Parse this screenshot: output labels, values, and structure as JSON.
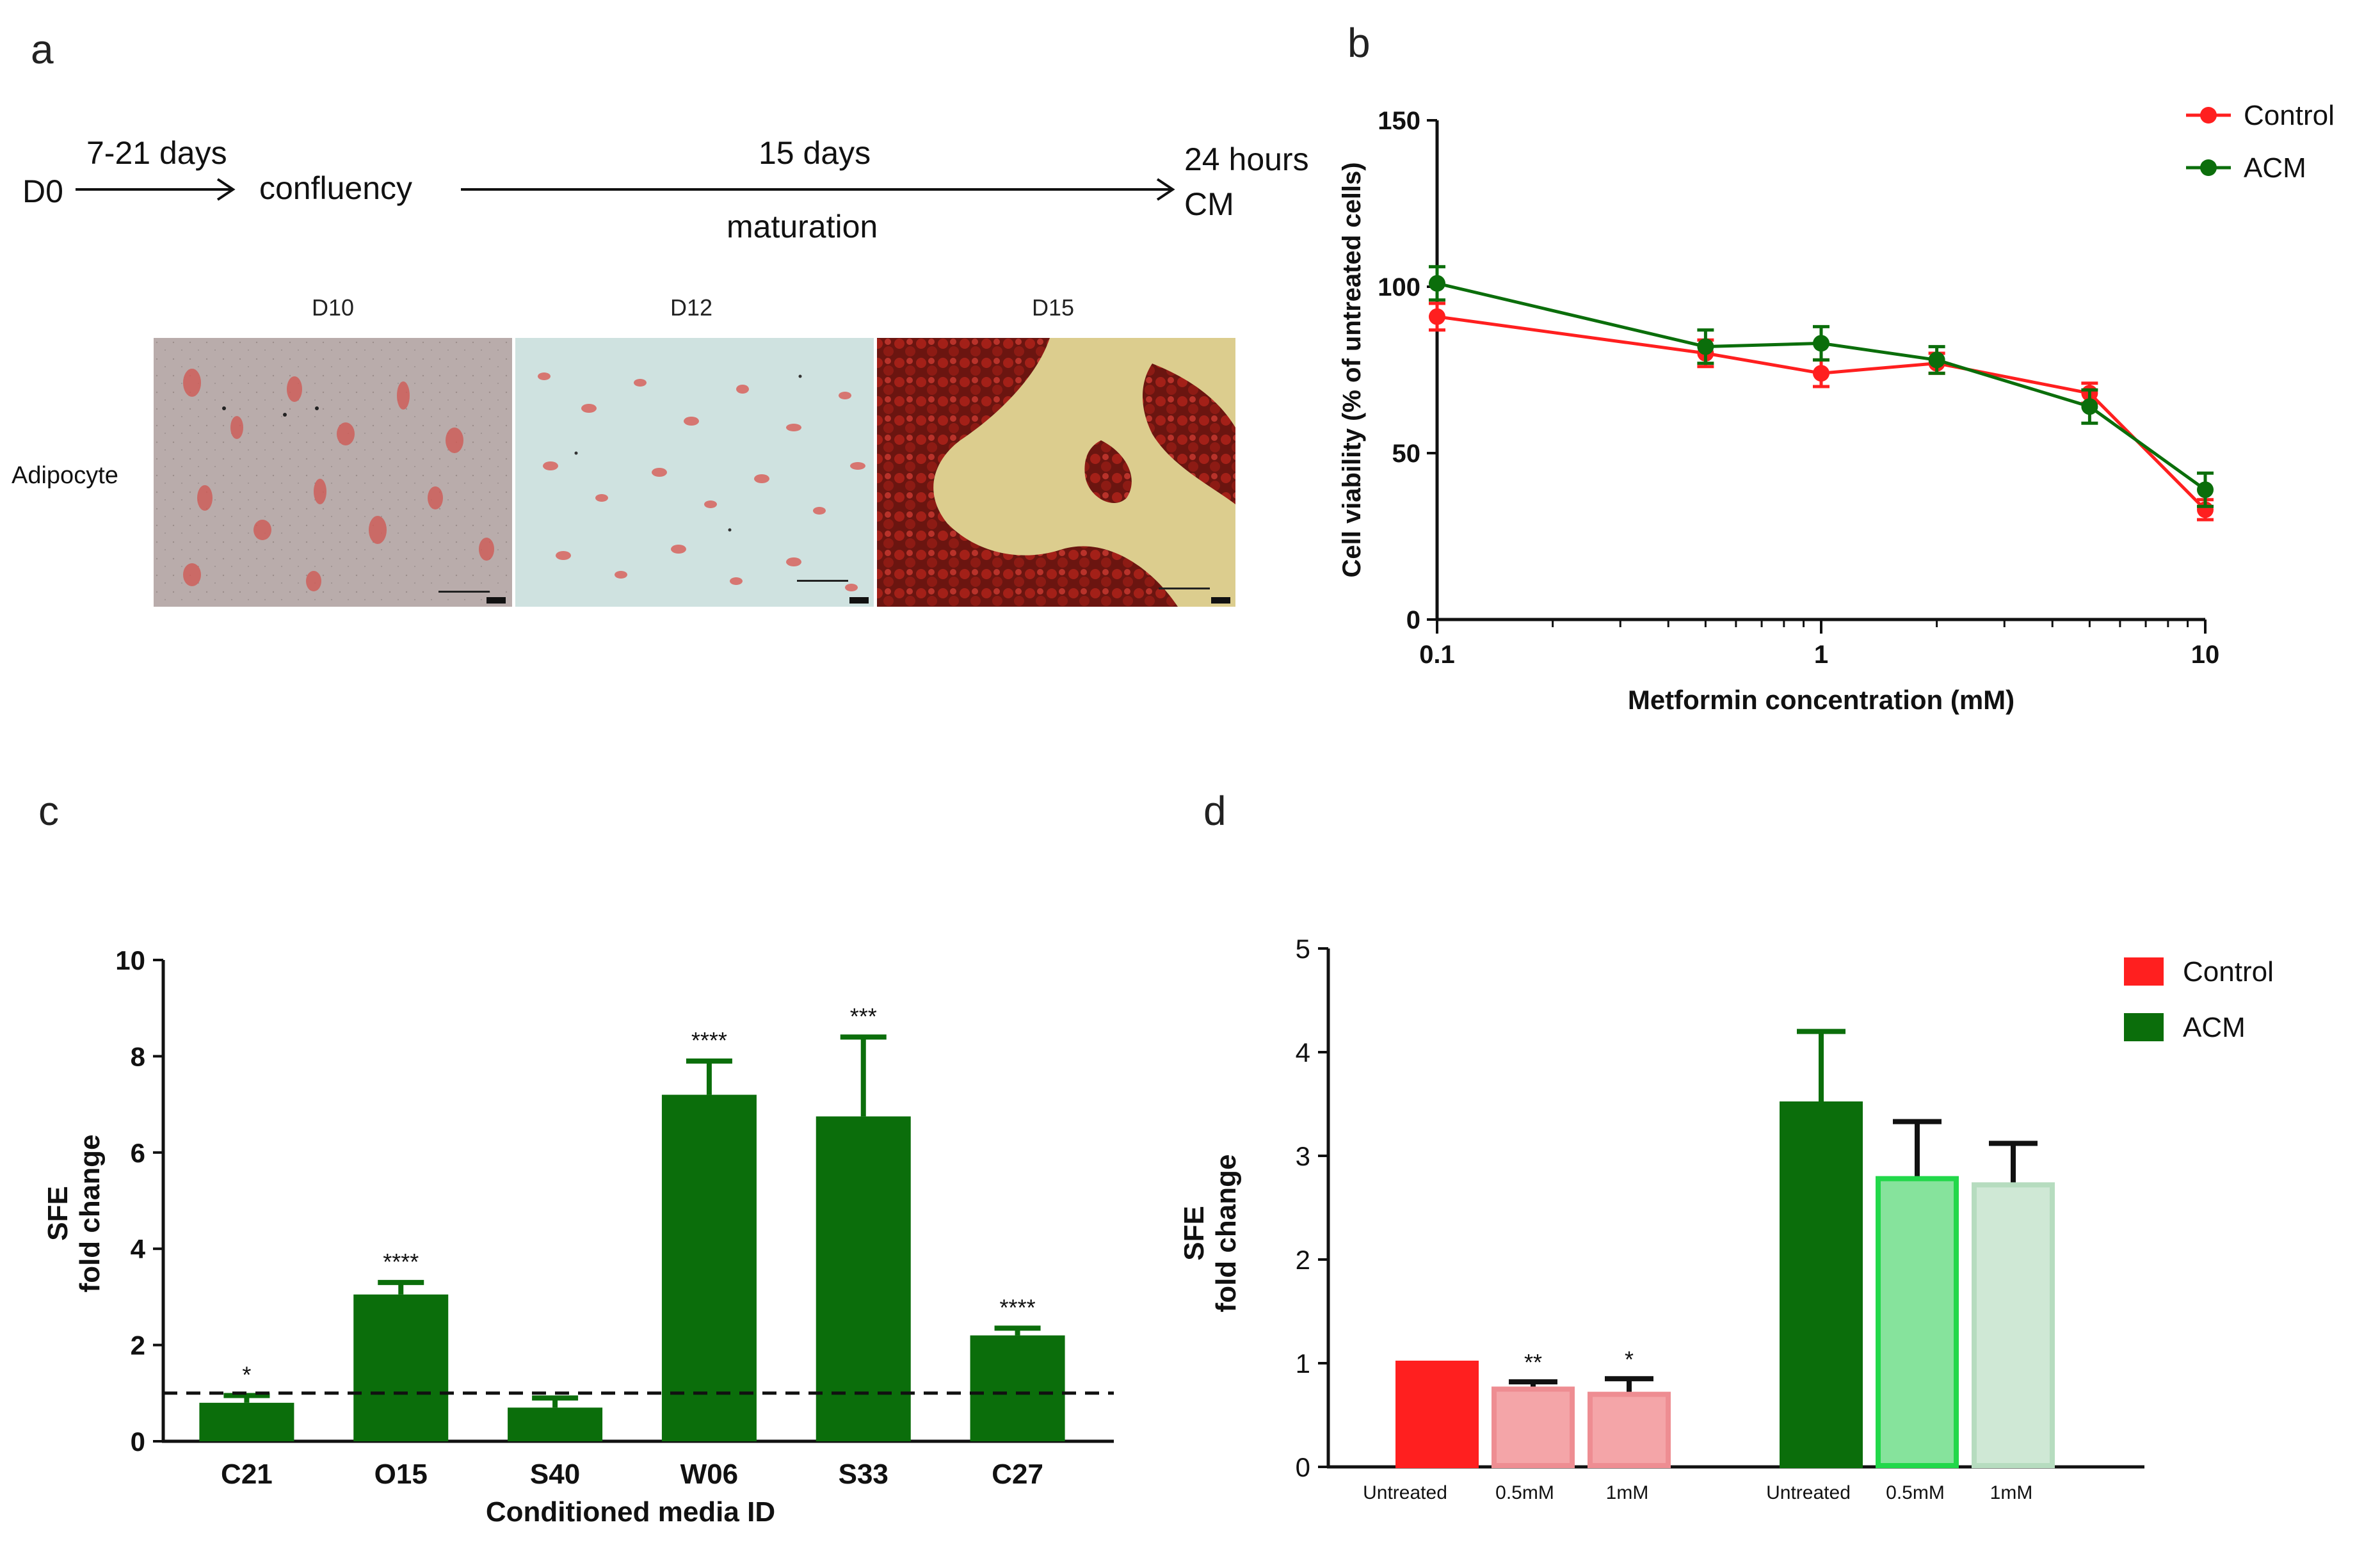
{
  "panels": {
    "a": "a",
    "b": "b",
    "c": "c",
    "d": "d"
  },
  "timeline": {
    "start": "D0",
    "step1_duration": "7-21 days",
    "step1_label": "confluency",
    "step2_duration": "15 days",
    "step2_label": "maturation",
    "end_line1": "24 hours",
    "end_line2": "CM"
  },
  "micrographs": {
    "row_label": "Adipocyte",
    "labels": [
      "D10",
      "D12",
      "D15"
    ],
    "colors": {
      "d10_bg": "#b7aaa8",
      "d12_bg": "#c9e0de",
      "d15_bg": "#d9c98a",
      "stain": "#c8332c"
    }
  },
  "colors": {
    "control": "#ff1f1f",
    "acm": "#0b6e0b",
    "control_light": "#f4a5a8",
    "acm_mid": "#86e39c",
    "acm_light": "#cfe8d5",
    "acm_mid_edge": "#22d84a",
    "acm_light_edge": "#b6dcbf"
  },
  "chart_data": [
    {
      "id": "b",
      "type": "line",
      "xscale": "log",
      "xlim": [
        0.1,
        10
      ],
      "ylim": [
        0,
        150
      ],
      "xticks": [
        "0.1",
        "1",
        "10"
      ],
      "yticks": [
        "0",
        "50",
        "100",
        "150"
      ],
      "xlabel": "Metformin concentration (mM)",
      "ylabel": "Cell viability (% of untreated cells)",
      "legend": [
        "Control",
        "ACM"
      ],
      "legend_position": "top-right",
      "series": [
        {
          "name": "Control",
          "x": [
            0.1,
            0.5,
            1,
            2,
            5,
            10
          ],
          "y": [
            91,
            80,
            74,
            77,
            68,
            33
          ],
          "err": [
            4,
            4,
            4,
            3,
            3,
            3
          ]
        },
        {
          "name": "ACM",
          "x": [
            0.1,
            0.5,
            1,
            2,
            5,
            10
          ],
          "y": [
            101,
            82,
            83,
            78,
            64,
            39
          ],
          "err": [
            5,
            5,
            5,
            4,
            5,
            5
          ]
        }
      ]
    },
    {
      "id": "c",
      "type": "bar",
      "categories": [
        "C21",
        "O15",
        "S40",
        "W06",
        "S33",
        "C27"
      ],
      "values": [
        0.8,
        3.05,
        0.7,
        7.2,
        6.75,
        2.2
      ],
      "err_up": [
        0.15,
        0.25,
        0.2,
        0.7,
        1.65,
        0.15
      ],
      "significance": [
        "*",
        "****",
        "",
        "****",
        "***",
        "****"
      ],
      "ylim": [
        0,
        10
      ],
      "yticks": [
        "0",
        "2",
        "4",
        "6",
        "8",
        "10"
      ],
      "reference_line": 1,
      "xlabel": "Conditioned media ID",
      "ylabel_line1": "SFE",
      "ylabel_line2": "fold change"
    },
    {
      "id": "d",
      "type": "bar",
      "ylim": [
        0,
        5
      ],
      "yticks": [
        "0",
        "1",
        "2",
        "3",
        "4",
        "5"
      ],
      "ylabel_line1": "SFE",
      "ylabel_line2": "fold change",
      "legend": [
        "Control",
        "ACM"
      ],
      "legend_position": "top-right",
      "bars": [
        {
          "label": "Untreated",
          "group": "Control",
          "value": 1.0,
          "err_up": 0,
          "sig": ""
        },
        {
          "label": "0.5mM",
          "group": "Control",
          "value": 0.75,
          "err_up": 0.07,
          "sig": "**"
        },
        {
          "label": "1mM",
          "group": "Control",
          "value": 0.7,
          "err_up": 0.15,
          "sig": "*"
        },
        {
          "label": "Untreated",
          "group": "ACM",
          "value": 3.5,
          "err_up": 0.7,
          "sig": ""
        },
        {
          "label": "0.5mM",
          "group": "ACM",
          "value": 2.78,
          "err_up": 0.55,
          "sig": ""
        },
        {
          "label": "1mM",
          "group": "ACM",
          "value": 2.72,
          "err_up": 0.4,
          "sig": ""
        }
      ]
    }
  ]
}
